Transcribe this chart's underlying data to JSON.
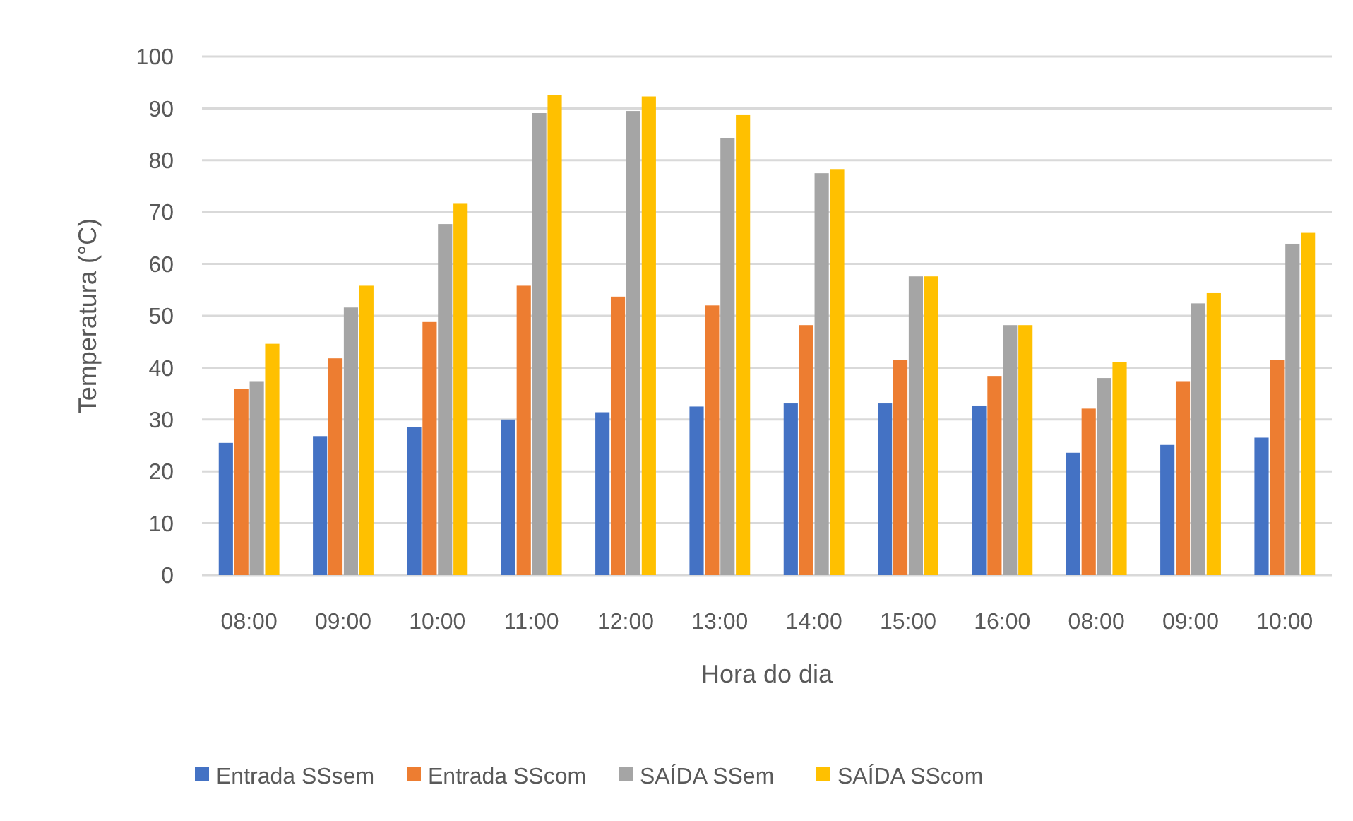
{
  "chart_data": {
    "type": "bar",
    "xlabel": "Hora do dia",
    "ylabel": "Temperatura (°C)",
    "categories": [
      "08:00",
      "09:00",
      "10:00",
      "11:00",
      "12:00",
      "13:00",
      "14:00",
      "15:00",
      "16:00",
      "08:00",
      "09:00",
      "10:00"
    ],
    "series": [
      {
        "name": "Entrada SSsem",
        "color": "#4472c4",
        "values": [
          25.5,
          26.8,
          28.5,
          30,
          31.4,
          32.5,
          33.1,
          33.1,
          32.7,
          23.6,
          25.1,
          26.5
        ]
      },
      {
        "name": "Entrada SScom",
        "color": "#ed7d31",
        "values": [
          35.9,
          41.8,
          48.8,
          55.8,
          53.7,
          52,
          48.2,
          41.5,
          38.4,
          32.1,
          37.4,
          41.5
        ]
      },
      {
        "name": "SAÍDA SSem",
        "color": "#a5a5a5",
        "values": [
          37.4,
          51.6,
          67.7,
          89.1,
          89.5,
          84.2,
          77.5,
          57.6,
          48.2,
          38,
          52.4,
          63.9
        ]
      },
      {
        "name": "SAÍDA SScom",
        "color": "#ffc000",
        "values": [
          44.6,
          55.8,
          71.6,
          92.6,
          92.3,
          88.7,
          78.3,
          57.6,
          48.2,
          41.1,
          54.5,
          66
        ]
      }
    ],
    "ylim": [
      0,
      100
    ],
    "yticks": [
      0,
      10,
      20,
      30,
      40,
      50,
      60,
      70,
      80,
      90,
      100
    ],
    "grid": "y",
    "legend": "bottom"
  }
}
